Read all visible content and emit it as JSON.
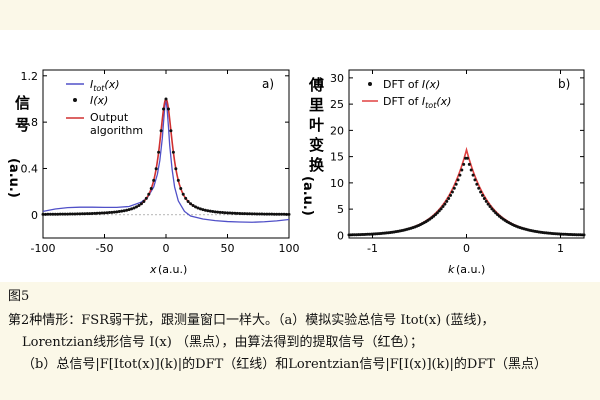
{
  "chart_data": [
    {
      "type": "line",
      "panel_label": "a)",
      "ylabel_cn": [
        "信",
        "号"
      ],
      "ylabel_unit": "(a.u.)",
      "xlabel_var": "x",
      "xlabel_unit": "(a.u.)",
      "xlim": [
        -100,
        100
      ],
      "ylim": [
        -0.2,
        1.25
      ],
      "xticks": [
        -100,
        -50,
        0,
        50,
        100
      ],
      "yticks": [
        0,
        0.4,
        0.8,
        1.2
      ],
      "xtick_labels": [
        "-100",
        "-50",
        "0",
        "50",
        "100"
      ],
      "ytick_labels": [
        "0",
        "0.4",
        "0.8",
        "1.2"
      ],
      "legend": [
        {
          "label": "I_tot(x)",
          "base": "I",
          "sub": "tot",
          "arg": "(x)",
          "style": "line",
          "color": "#5050c8"
        },
        {
          "label": "I(x)",
          "base": "I",
          "sub": "",
          "arg": "(x)",
          "style": "dot",
          "color": "#111111"
        },
        {
          "label": "Output algorithm",
          "lines": [
            "Output",
            "algorithm"
          ],
          "style": "line",
          "color": "#d03030"
        }
      ],
      "series": [
        {
          "name": "I_tot(x)",
          "color": "#5050c8",
          "x": [
            -100,
            -90,
            -80,
            -70,
            -60,
            -50,
            -40,
            -30,
            -20,
            -15,
            -10,
            -7,
            -5,
            -3,
            -2,
            -1,
            0,
            1,
            2,
            3,
            5,
            7,
            10,
            15,
            20,
            30,
            40,
            50,
            60,
            70,
            80,
            90,
            100
          ],
          "y": [
            0.03,
            0.05,
            0.062,
            0.066,
            0.066,
            0.064,
            0.064,
            0.072,
            0.11,
            0.15,
            0.24,
            0.35,
            0.47,
            0.66,
            0.8,
            0.93,
            1.0,
            0.9,
            0.76,
            0.6,
            0.39,
            0.24,
            0.12,
            0.03,
            -0.01,
            -0.036,
            -0.05,
            -0.058,
            -0.062,
            -0.064,
            -0.06,
            -0.052,
            -0.04
          ]
        },
        {
          "name": "Output algorithm",
          "color": "#d03030",
          "lorentz_gamma": 6.5,
          "x_range": [
            -100,
            100
          ]
        },
        {
          "name": "I(x)",
          "color": "#111111",
          "lorentz_gamma": 6.5,
          "x_range": [
            -100,
            100
          ],
          "dot_step": 2
        }
      ]
    },
    {
      "type": "line",
      "panel_label": "b)",
      "ylabel_cn": [
        "傅",
        "里",
        "叶",
        "变",
        "换"
      ],
      "ylabel_unit": "(a.u.)",
      "xlabel_var": "k",
      "xlabel_unit": "(a.u.)",
      "xlim": [
        -1.25,
        1.25
      ],
      "ylim": [
        -0.5,
        31.5
      ],
      "xticks": [
        -1,
        0,
        1
      ],
      "yticks": [
        0,
        5,
        10,
        15,
        20,
        25,
        30
      ],
      "xtick_labels": [
        "-1",
        "0",
        "1"
      ],
      "ytick_labels": [
        "0",
        "5",
        "10",
        "15",
        "20",
        "25",
        "30"
      ],
      "legend": [
        {
          "label": "DFT of I(x)",
          "prefix": "DFT of ",
          "base": "I",
          "sub": "",
          "arg": "(x)",
          "style": "dot",
          "color": "#111111"
        },
        {
          "label": "DFT of I_tot(x)",
          "prefix": "DFT of ",
          "base": "I",
          "sub": "tot",
          "arg": "(x)",
          "style": "line",
          "color": "#e04040"
        }
      ],
      "series": [
        {
          "name": "DFT of I_tot(x)",
          "color": "#e04040",
          "peak": 16.3,
          "decay": 4.1,
          "x_range": [
            -1.25,
            1.25
          ]
        },
        {
          "name": "DFT of I(x)",
          "color": "#111111",
          "peak": 15.3,
          "decay": 4.1,
          "x_range": [
            -1.25,
            1.25
          ],
          "dot_step": 0.02
        }
      ]
    }
  ],
  "caption": {
    "fig_label": "图5",
    "line1": "第2种情形：FSR弱干扰，跟测量窗口一样大。（a）模拟实验总信号 Itot(x) (蓝线)，",
    "line2": "Lorentzian线形信号 I(x) （黑点），由算法得到的提取信号（红色）；",
    "line3": "（b）总信号|F[Itot(x)](k)|的DFT（红线）和Lorentzian信号|F[I(x)](k)|的DFT（黑点）"
  }
}
